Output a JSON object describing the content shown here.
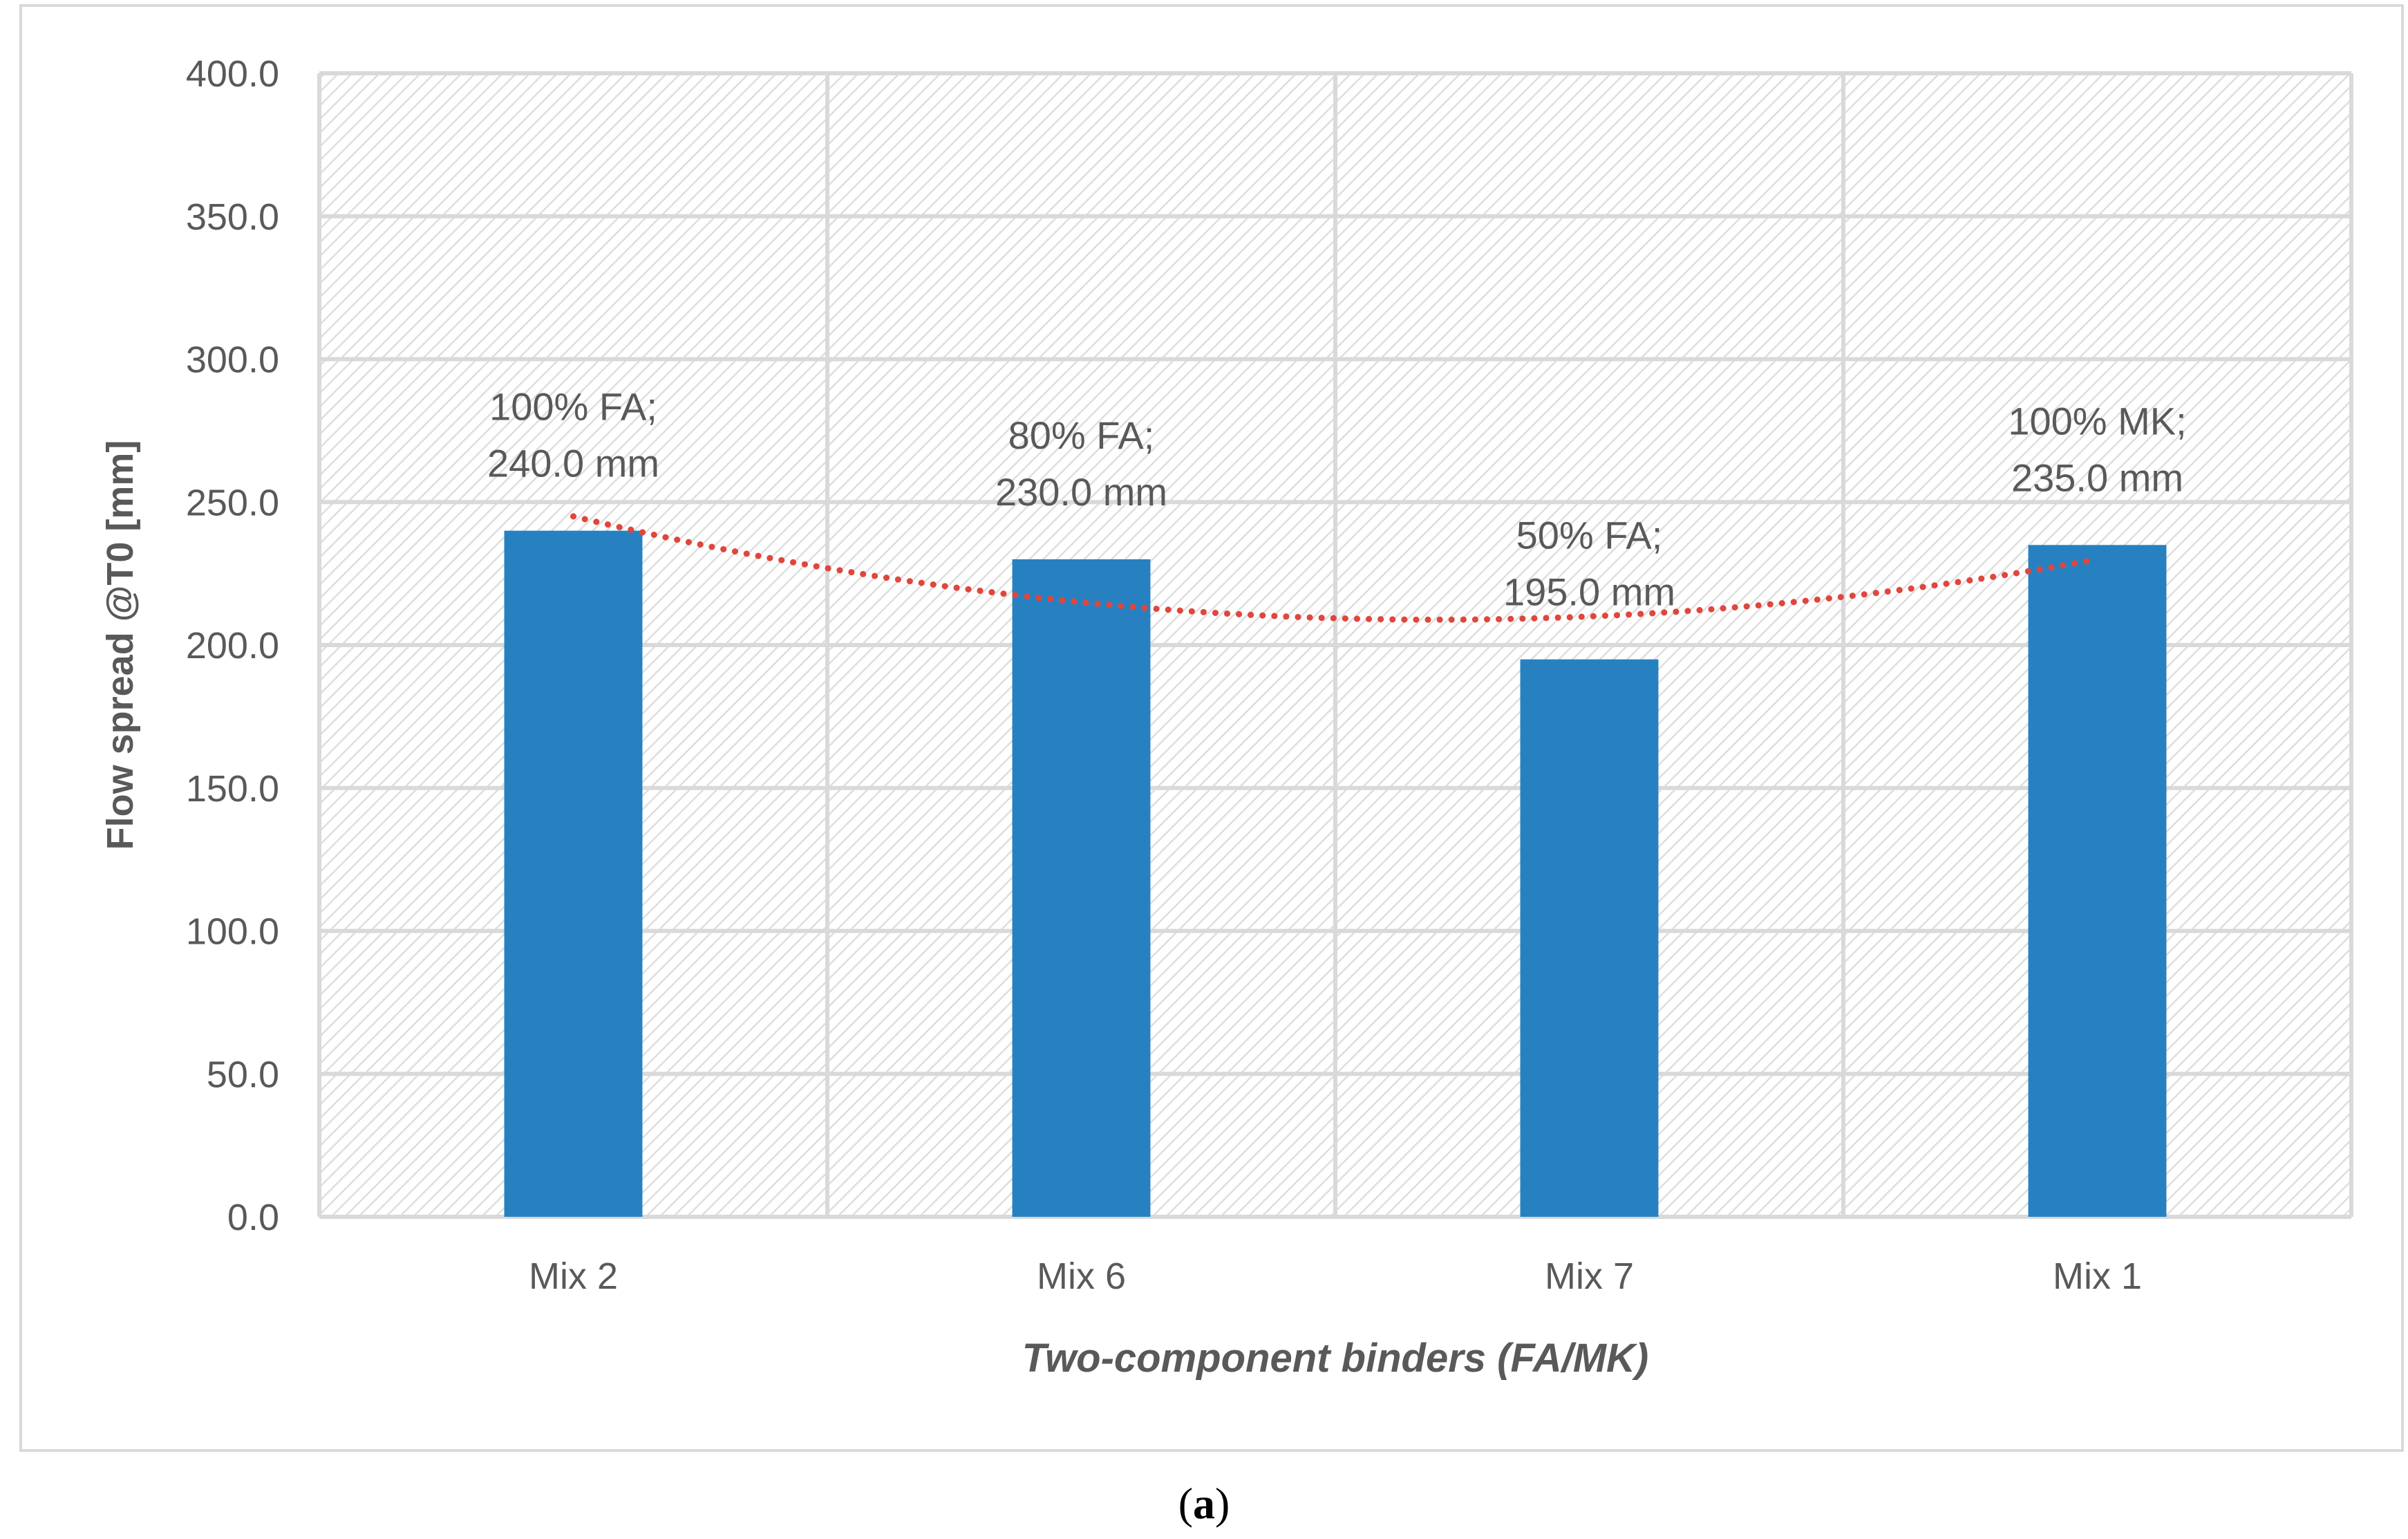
{
  "chart_data": {
    "type": "bar",
    "categories": [
      "Mix 2",
      "Mix 6",
      "Mix 7",
      "Mix 1"
    ],
    "values": [
      240.0,
      230.0,
      195.0,
      235.0
    ],
    "data_labels": [
      [
        "100% FA;",
        "240.0 mm"
      ],
      [
        "80% FA;",
        "230.0 mm"
      ],
      [
        "50% FA;",
        "195.0 mm"
      ],
      [
        "100% MK;",
        "235.0 mm"
      ]
    ],
    "xlabel": "Two-component binders (FA/MK)",
    "ylabel": "Flow spread @T0 [mm]",
    "ylim": [
      0,
      400
    ],
    "yticks": [
      0,
      50,
      100,
      150,
      200,
      250,
      300,
      350,
      400
    ],
    "ytick_labels": [
      "0.0",
      "50.0",
      "100.0",
      "150.0",
      "200.0",
      "250.0",
      "300.0",
      "350.0",
      "400.0"
    ],
    "grid": true,
    "plot_background": "diagonal hatch",
    "trendline": {
      "type": "polynomial",
      "style": "dotted"
    },
    "colors": {
      "bar": "#2781c1",
      "trend": "#e0463c",
      "grid": "#d9d9d9",
      "text": "#595959"
    }
  },
  "caption": {
    "open": "(",
    "letter": "a",
    "close": ")"
  }
}
